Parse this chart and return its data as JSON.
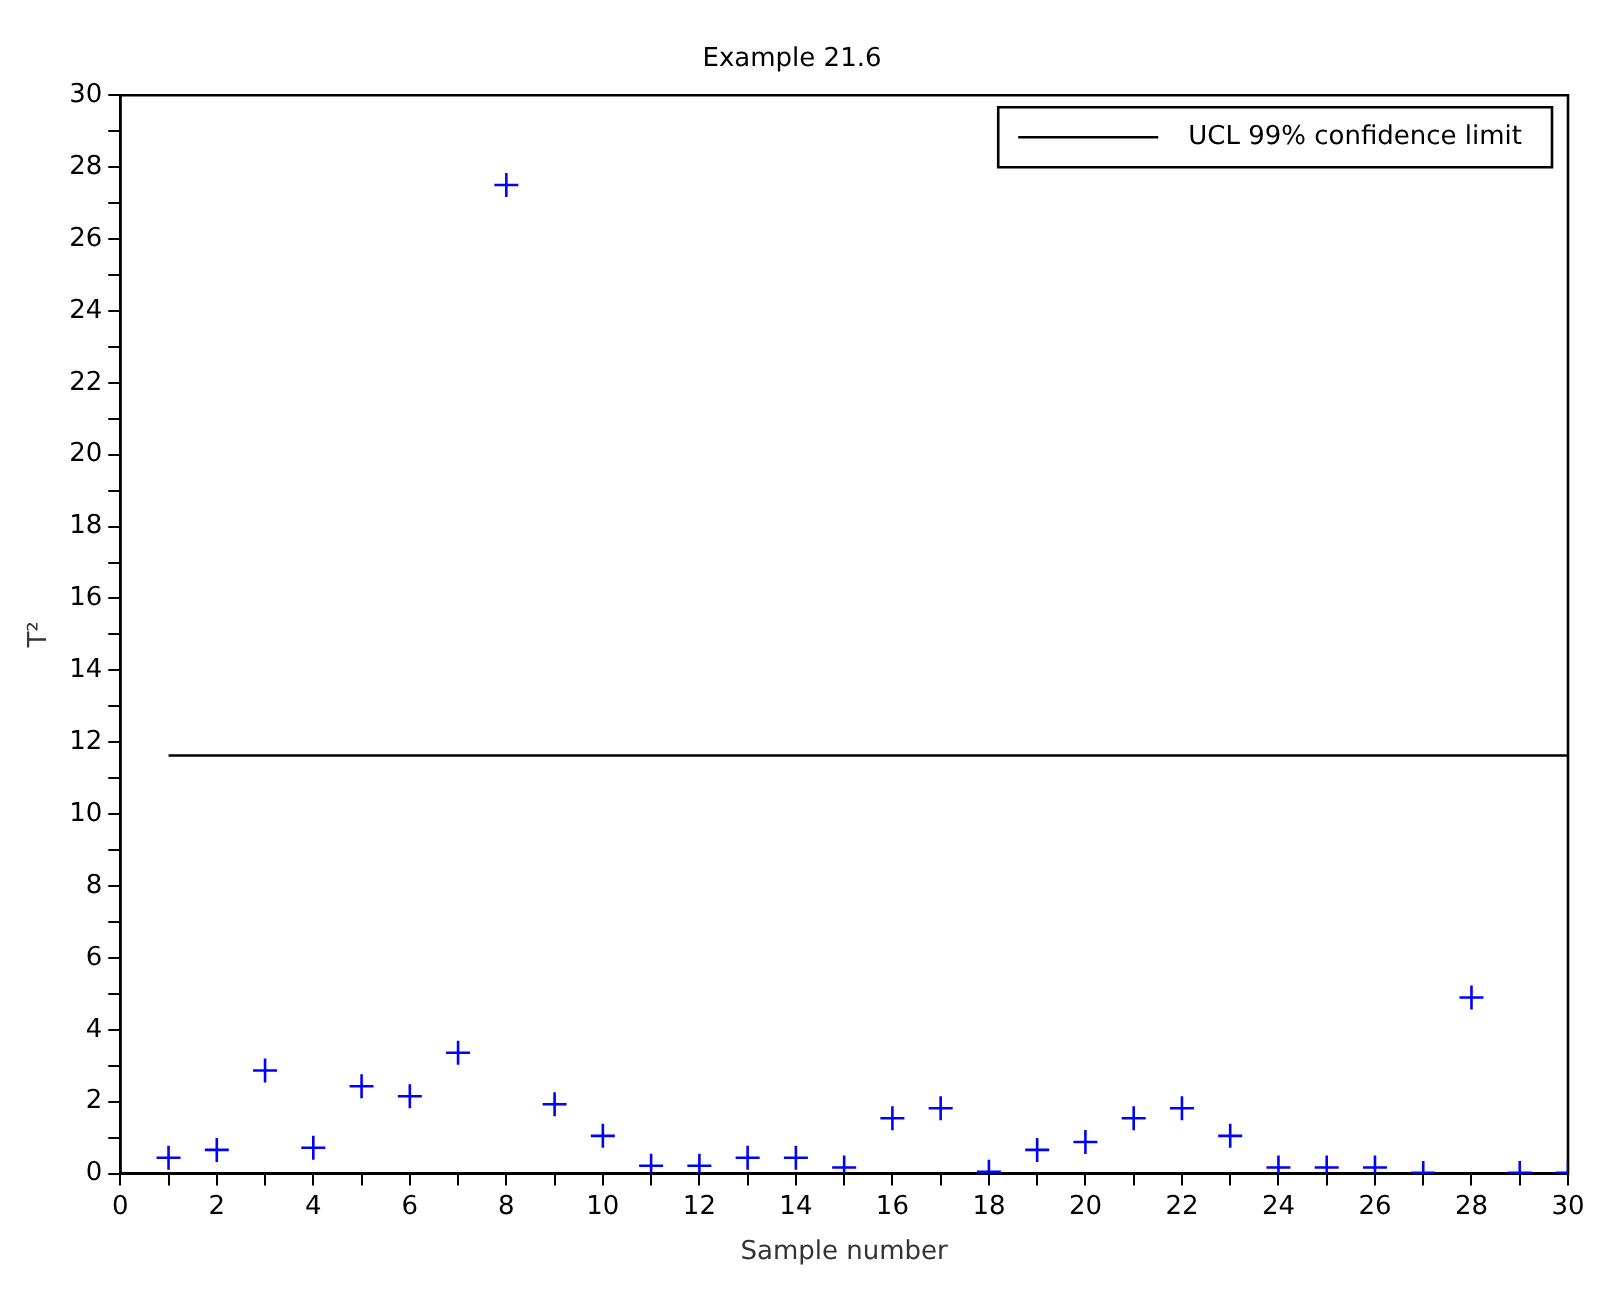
{
  "chart_data": {
    "type": "scatter",
    "title": "Example 21.6",
    "xlabel": "Sample number",
    "ylabel": "T²",
    "x": [
      1,
      2,
      3,
      4,
      5,
      6,
      7,
      8,
      9,
      10,
      11,
      12,
      13,
      14,
      15,
      16,
      17,
      18,
      19,
      20,
      21,
      22,
      23,
      24,
      25,
      26,
      27,
      28,
      29,
      30
    ],
    "series": [
      {
        "color": "#0000ff",
        "marker": "cross",
        "values": [
          0.44,
          0.66,
          2.87,
          0.72,
          2.43,
          2.15,
          3.36,
          27.5,
          1.93,
          1.05,
          0.22,
          0.22,
          0.44,
          0.44,
          0.17,
          1.54,
          1.82,
          0.05,
          0.66,
          0.88,
          1.54,
          1.82,
          1.05,
          0.17,
          0.17,
          0.17,
          0.02,
          4.9,
          0.02,
          0.02
        ]
      },
      {
        "type": "line",
        "name": "UCL 99% confidence limit",
        "color": "#000000",
        "marker": "none",
        "line_style": "solid",
        "x": [
          1,
          30
        ],
        "values": [
          11.63,
          11.63
        ]
      }
    ],
    "xlim": [
      0,
      30
    ],
    "ylim": [
      0,
      30
    ],
    "xticks": [
      0,
      {
        "value": 1,
        "label": null
      },
      2,
      {
        "value": 3,
        "label": null
      },
      4,
      {
        "value": 5,
        "label": null
      },
      6,
      {
        "value": 7,
        "label": null
      },
      8,
      {
        "value": 9,
        "label": null
      },
      10,
      {
        "value": 11,
        "label": null
      },
      12,
      {
        "value": 13,
        "label": null
      },
      14,
      {
        "value": 15,
        "label": null
      },
      16,
      {
        "value": 17,
        "label": null
      },
      18,
      {
        "value": 19,
        "label": null
      },
      20,
      {
        "value": 21,
        "label": null
      },
      22,
      {
        "value": 23,
        "label": null
      },
      24,
      {
        "value": 25,
        "label": null
      },
      26,
      {
        "value": 27,
        "label": null
      },
      28,
      {
        "value": 29,
        "label": null
      },
      30
    ],
    "yticks": [
      0,
      {
        "value": 1,
        "label": null
      },
      2,
      {
        "value": 3,
        "label": null
      },
      4,
      {
        "value": 5,
        "label": null
      },
      6,
      {
        "value": 7,
        "label": null
      },
      8,
      {
        "value": 9,
        "label": null
      },
      10,
      {
        "value": 11,
        "label": null
      },
      12,
      {
        "value": 13,
        "label": null
      },
      14,
      {
        "value": 15,
        "label": null
      },
      16,
      {
        "value": 17,
        "label": null
      },
      18,
      {
        "value": 19,
        "label": null
      },
      20,
      {
        "value": 21,
        "label": null
      },
      22,
      {
        "value": 23,
        "label": null
      },
      24,
      {
        "value": 25,
        "label": null
      },
      26,
      {
        "value": 27,
        "label": null
      },
      28,
      {
        "value": 29,
        "label": null
      },
      30
    ],
    "grid": false,
    "legend": "top right"
  }
}
